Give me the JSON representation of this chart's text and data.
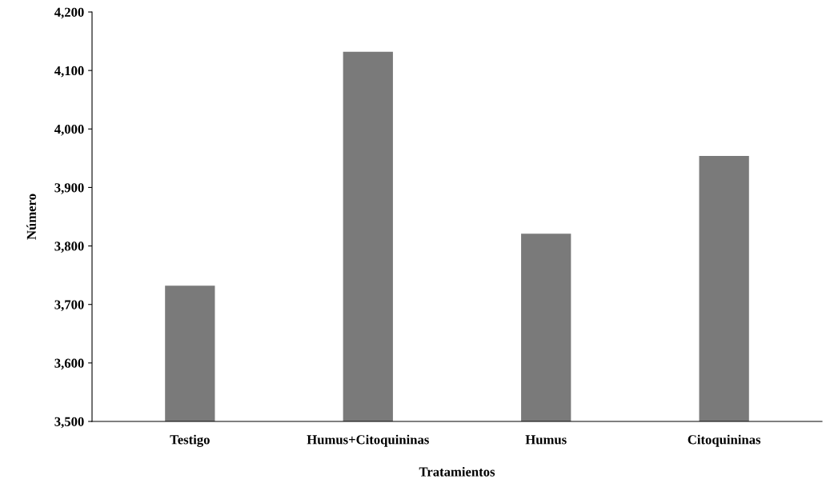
{
  "chart_data": {
    "type": "bar",
    "xlabel": "Tratamientos",
    "ylabel": "Número",
    "categories": [
      "Testigo",
      "Humus+Citoquininas",
      "Humus",
      "Citoquininas"
    ],
    "values": [
      3732,
      4132,
      3821,
      3954
    ],
    "color": "#7a7a7a",
    "ylim": [
      3500,
      4200
    ],
    "yticks": [
      {
        "value": 3500,
        "label": "3,500"
      },
      {
        "value": 3600,
        "label": "3,600"
      },
      {
        "value": 3700,
        "label": "3,700"
      },
      {
        "value": 3800,
        "label": "3,800"
      },
      {
        "value": 3900,
        "label": "3,900"
      },
      {
        "value": 4000,
        "label": "4,000"
      },
      {
        "value": 4100,
        "label": "4,100"
      },
      {
        "value": 4200,
        "label": "4,200"
      }
    ],
    "grid": false,
    "legend": false
  }
}
